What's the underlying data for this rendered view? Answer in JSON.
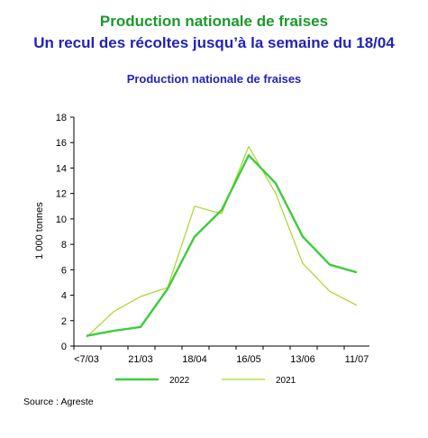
{
  "header": {
    "title": "Production nationale de fraises",
    "subtitle": "Un recul des récoltes jusqu’à la semaine du 18/04"
  },
  "source": "Source : Agreste",
  "colors": {
    "s2022": "#3dcc3d",
    "s2021": "#a8d62a",
    "title_green": "#1a9a2a",
    "title_blue": "#2323b8"
  },
  "chart_data": {
    "type": "line",
    "title": "Production nationale de  fraises",
    "ylabel": "1 000  tonnes",
    "xlabel": "",
    "ylim": [
      0,
      18
    ],
    "yticks": [
      0,
      2,
      4,
      6,
      8,
      10,
      12,
      14,
      16,
      18
    ],
    "xtick_labels": [
      "<7/03",
      "21/03",
      "18/04",
      "16/05",
      "13/06",
      "11/07"
    ],
    "grid": false,
    "legend": "bottom",
    "series": [
      {
        "name": "2022",
        "values": [
          0.8,
          1.2,
          1.5,
          4.5,
          8.6,
          10.7,
          15.0,
          12.8,
          8.6,
          6.4,
          5.8
        ]
      },
      {
        "name": "2021",
        "values": [
          0.7,
          2.7,
          3.9,
          4.6,
          11.0,
          10.4,
          15.7,
          12.0,
          6.5,
          4.3,
          3.2
        ]
      }
    ]
  }
}
